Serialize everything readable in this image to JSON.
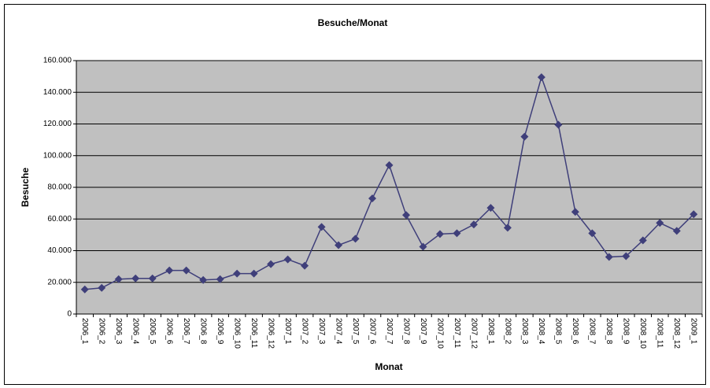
{
  "chart_data": {
    "type": "line",
    "title": "Besuche/Monat",
    "x_label": "Monat",
    "y_label": "Besuche",
    "categories": [
      "2006_1",
      "2006_2",
      "2006_3",
      "2006_4",
      "2006_5",
      "2006_6",
      "2006_7",
      "2006_8",
      "2006_9",
      "2006_10",
      "2006_11",
      "2006_12",
      "2007_1",
      "2007_2",
      "2007_3",
      "2007_4",
      "2007_5",
      "2007_6",
      "2007_7",
      "2007_8",
      "2007_9",
      "2007_10",
      "2007_11",
      "2007_12",
      "2008_1",
      "2008_2",
      "2008_3",
      "2008_4",
      "2008_5",
      "2008_6",
      "2008_7",
      "2008_8",
      "2008_9",
      "2008_10",
      "2008_11",
      "2008_12",
      "2009_1"
    ],
    "values": [
      15500,
      16500,
      22000,
      22500,
      22500,
      27500,
      27500,
      21500,
      22000,
      25500,
      25500,
      31500,
      34500,
      30500,
      55000,
      43500,
      47500,
      73000,
      94000,
      62500,
      42500,
      50500,
      51000,
      56500,
      67000,
      54500,
      112000,
      149500,
      119500,
      64500,
      51000,
      36000,
      36500,
      46500,
      57500,
      52500,
      63000
    ],
    "color": "#3f3f7a",
    "ylim": [
      0,
      160000
    ],
    "yticks": [
      0,
      {
        "value": 20000,
        "label": "20.000"
      },
      {
        "value": 40000,
        "label": "40.000"
      },
      {
        "value": 60000,
        "label": "60.000"
      },
      {
        "value": 80000,
        "label": "80.000"
      },
      {
        "value": 100000,
        "label": "100.000"
      },
      {
        "value": 120000,
        "label": "120.000"
      },
      {
        "value": 140000,
        "label": "140.000"
      },
      {
        "value": 160000,
        "label": "160.000"
      }
    ],
    "grid": true
  }
}
